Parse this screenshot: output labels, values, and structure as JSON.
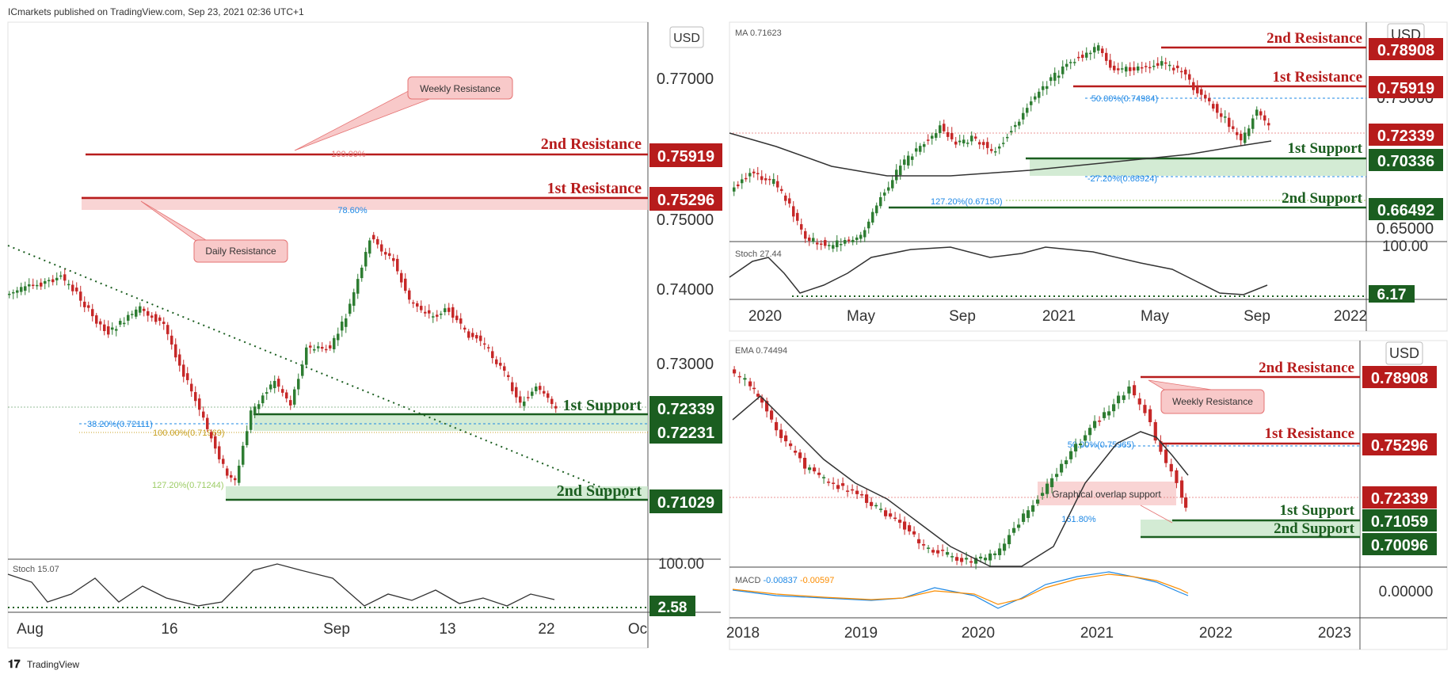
{
  "header": {
    "published": "ICmarkets published on TradingView.com, Sep 23, 2021 02:36 UTC+1"
  },
  "footer": {
    "logo_text": "TradingView"
  },
  "colors": {
    "resistance": "#b71c1c",
    "support": "#1b5e20",
    "up": "#2e7d32",
    "down": "#c62828",
    "zone_res": "#f8c9c9",
    "zone_sup": "#c8e6c9"
  },
  "chart_data": [
    {
      "id": "h4",
      "type": "candlestick",
      "currency": "USD",
      "y_ticks": [
        "0.77000",
        "0.75000",
        "0.74000",
        "0.73000"
      ],
      "x_ticks": [
        "Aug",
        "16",
        "Sep",
        "13",
        "22",
        "Oc"
      ],
      "levels": [
        {
          "label": "2nd Resistance",
          "value": "0.75919",
          "kind": "res"
        },
        {
          "label": "1st Resistance",
          "value": "0.75296",
          "kind": "res"
        },
        {
          "label": "1st Support",
          "value": "0.72339",
          "kind": "sup"
        },
        {
          "label": "",
          "value": "0.72231",
          "kind": "sup"
        },
        {
          "label": "2nd Support",
          "value": "0.71029",
          "kind": "sup"
        }
      ],
      "annotations": [
        "Weekly Resistance",
        "Daily Resistance"
      ],
      "fib_labels": [
        "100.00%",
        "78.60%",
        "38.20%(0.72111)",
        "100.00%(0.71969)",
        "127.20%(0.71244)"
      ],
      "indicator": {
        "name": "Stoch",
        "value": "15.07",
        "top": "100.00",
        "current": "2.58"
      }
    },
    {
      "id": "daily",
      "type": "candlestick",
      "currency": "USD",
      "ma_label": "MA",
      "ma_value": "0.71623",
      "y_ticks": [
        "0.75000",
        "0.65000"
      ],
      "x_ticks": [
        "2020",
        "May",
        "Sep",
        "2021",
        "May",
        "Sep",
        "2022"
      ],
      "levels": [
        {
          "label": "2nd Resistance",
          "value": "0.78908",
          "kind": "res"
        },
        {
          "label": "1st Resistance",
          "value": "0.75919",
          "kind": "res"
        },
        {
          "label": "",
          "value": "0.72339",
          "kind": "res"
        },
        {
          "label": "1st Support",
          "value": "0.70336",
          "kind": "sup"
        },
        {
          "label": "2nd Support",
          "value": "0.66492",
          "kind": "sup"
        }
      ],
      "fib_labels": [
        "50.00%(0.74984)",
        "-27.20%(0.68924)",
        "127.20%(0.67150)"
      ],
      "indicator": {
        "name": "Stoch",
        "value": "27.44",
        "top": "100.00",
        "current": "6.17"
      }
    },
    {
      "id": "weekly",
      "type": "candlestick",
      "currency": "USD",
      "ma_label": "EMA",
      "ma_value": "0.74494",
      "x_ticks": [
        "2018",
        "2019",
        "2020",
        "2021",
        "2022",
        "2023"
      ],
      "levels": [
        {
          "label": "2nd Resistance",
          "value": "0.78908",
          "kind": "res"
        },
        {
          "label": "1st Resistance",
          "value": "0.75296",
          "kind": "res"
        },
        {
          "label": "",
          "value": "0.72339",
          "kind": "res"
        },
        {
          "label": "1st Support",
          "value": "0.71059",
          "kind": "sup"
        },
        {
          "label": "2nd Support",
          "value": "0.70096",
          "kind": "sup"
        }
      ],
      "annotations": [
        "Weekly Resistance",
        "Graphical overlap support"
      ],
      "fib_labels": [
        "50.00%(0.75965)",
        "161.80%"
      ],
      "indicator": {
        "name": "MACD",
        "v1": "-0.00837",
        "v2": "-0.00597",
        "zero": "0.00000"
      }
    }
  ]
}
